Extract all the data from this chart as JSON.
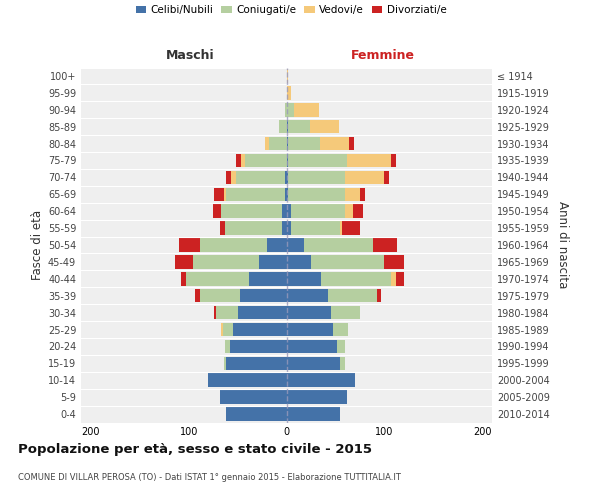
{
  "age_groups": [
    "0-4",
    "5-9",
    "10-14",
    "15-19",
    "20-24",
    "25-29",
    "30-34",
    "35-39",
    "40-44",
    "45-49",
    "50-54",
    "55-59",
    "60-64",
    "65-69",
    "70-74",
    "75-79",
    "80-84",
    "85-89",
    "90-94",
    "95-99",
    "100+"
  ],
  "birth_years": [
    "2010-2014",
    "2005-2009",
    "2000-2004",
    "1995-1999",
    "1990-1994",
    "1985-1989",
    "1980-1984",
    "1975-1979",
    "1970-1974",
    "1965-1969",
    "1960-1964",
    "1955-1959",
    "1950-1954",
    "1945-1949",
    "1940-1944",
    "1935-1939",
    "1930-1934",
    "1925-1929",
    "1920-1924",
    "1915-1919",
    "≤ 1914"
  ],
  "male": {
    "celibi": [
      62,
      68,
      80,
      62,
      58,
      55,
      50,
      48,
      38,
      28,
      20,
      5,
      5,
      2,
      2,
      0,
      0,
      0,
      0,
      0,
      0
    ],
    "coniugati": [
      0,
      0,
      0,
      2,
      5,
      10,
      22,
      40,
      65,
      68,
      68,
      58,
      62,
      60,
      50,
      42,
      18,
      8,
      2,
      0,
      0
    ],
    "vedovi": [
      0,
      0,
      0,
      0,
      0,
      2,
      0,
      0,
      0,
      0,
      0,
      0,
      0,
      2,
      5,
      5,
      4,
      0,
      0,
      0,
      0
    ],
    "divorziati": [
      0,
      0,
      0,
      0,
      0,
      0,
      2,
      5,
      5,
      18,
      22,
      5,
      8,
      10,
      5,
      5,
      0,
      0,
      0,
      0,
      0
    ]
  },
  "female": {
    "nubili": [
      55,
      62,
      70,
      55,
      52,
      48,
      45,
      42,
      35,
      25,
      18,
      5,
      5,
      2,
      2,
      2,
      2,
      2,
      0,
      0,
      0
    ],
    "coniugate": [
      0,
      0,
      0,
      5,
      8,
      15,
      30,
      50,
      72,
      75,
      70,
      50,
      55,
      58,
      58,
      60,
      32,
      22,
      8,
      0,
      0
    ],
    "vedove": [
      0,
      0,
      0,
      0,
      0,
      0,
      0,
      0,
      5,
      0,
      0,
      2,
      8,
      15,
      40,
      45,
      30,
      30,
      25,
      5,
      2
    ],
    "divorziate": [
      0,
      0,
      0,
      0,
      0,
      0,
      0,
      5,
      8,
      20,
      25,
      18,
      10,
      5,
      5,
      5,
      5,
      0,
      0,
      0,
      0
    ]
  },
  "colors": {
    "celibi": "#4472a8",
    "coniugati": "#b5cfa0",
    "vedovi": "#f5c97a",
    "divorziati": "#cc2222"
  },
  "xlim": 210,
  "title": "Popolazione per età, sesso e stato civile - 2015",
  "subtitle": "COMUNE DI VILLAR PEROSA (TO) - Dati ISTAT 1° gennaio 2015 - Elaborazione TUTTITALIA.IT",
  "ylabel_left": "Fasce di età",
  "ylabel_right": "Anni di nascita",
  "legend_labels": [
    "Celibi/Nubili",
    "Coniugati/e",
    "Vedovi/e",
    "Divorziati/e"
  ],
  "bg_color": "#efefef",
  "header_maschi": "Maschi",
  "header_femmine": "Femmine",
  "header_femmine_color": "#cc2222",
  "header_maschi_color": "#333333"
}
